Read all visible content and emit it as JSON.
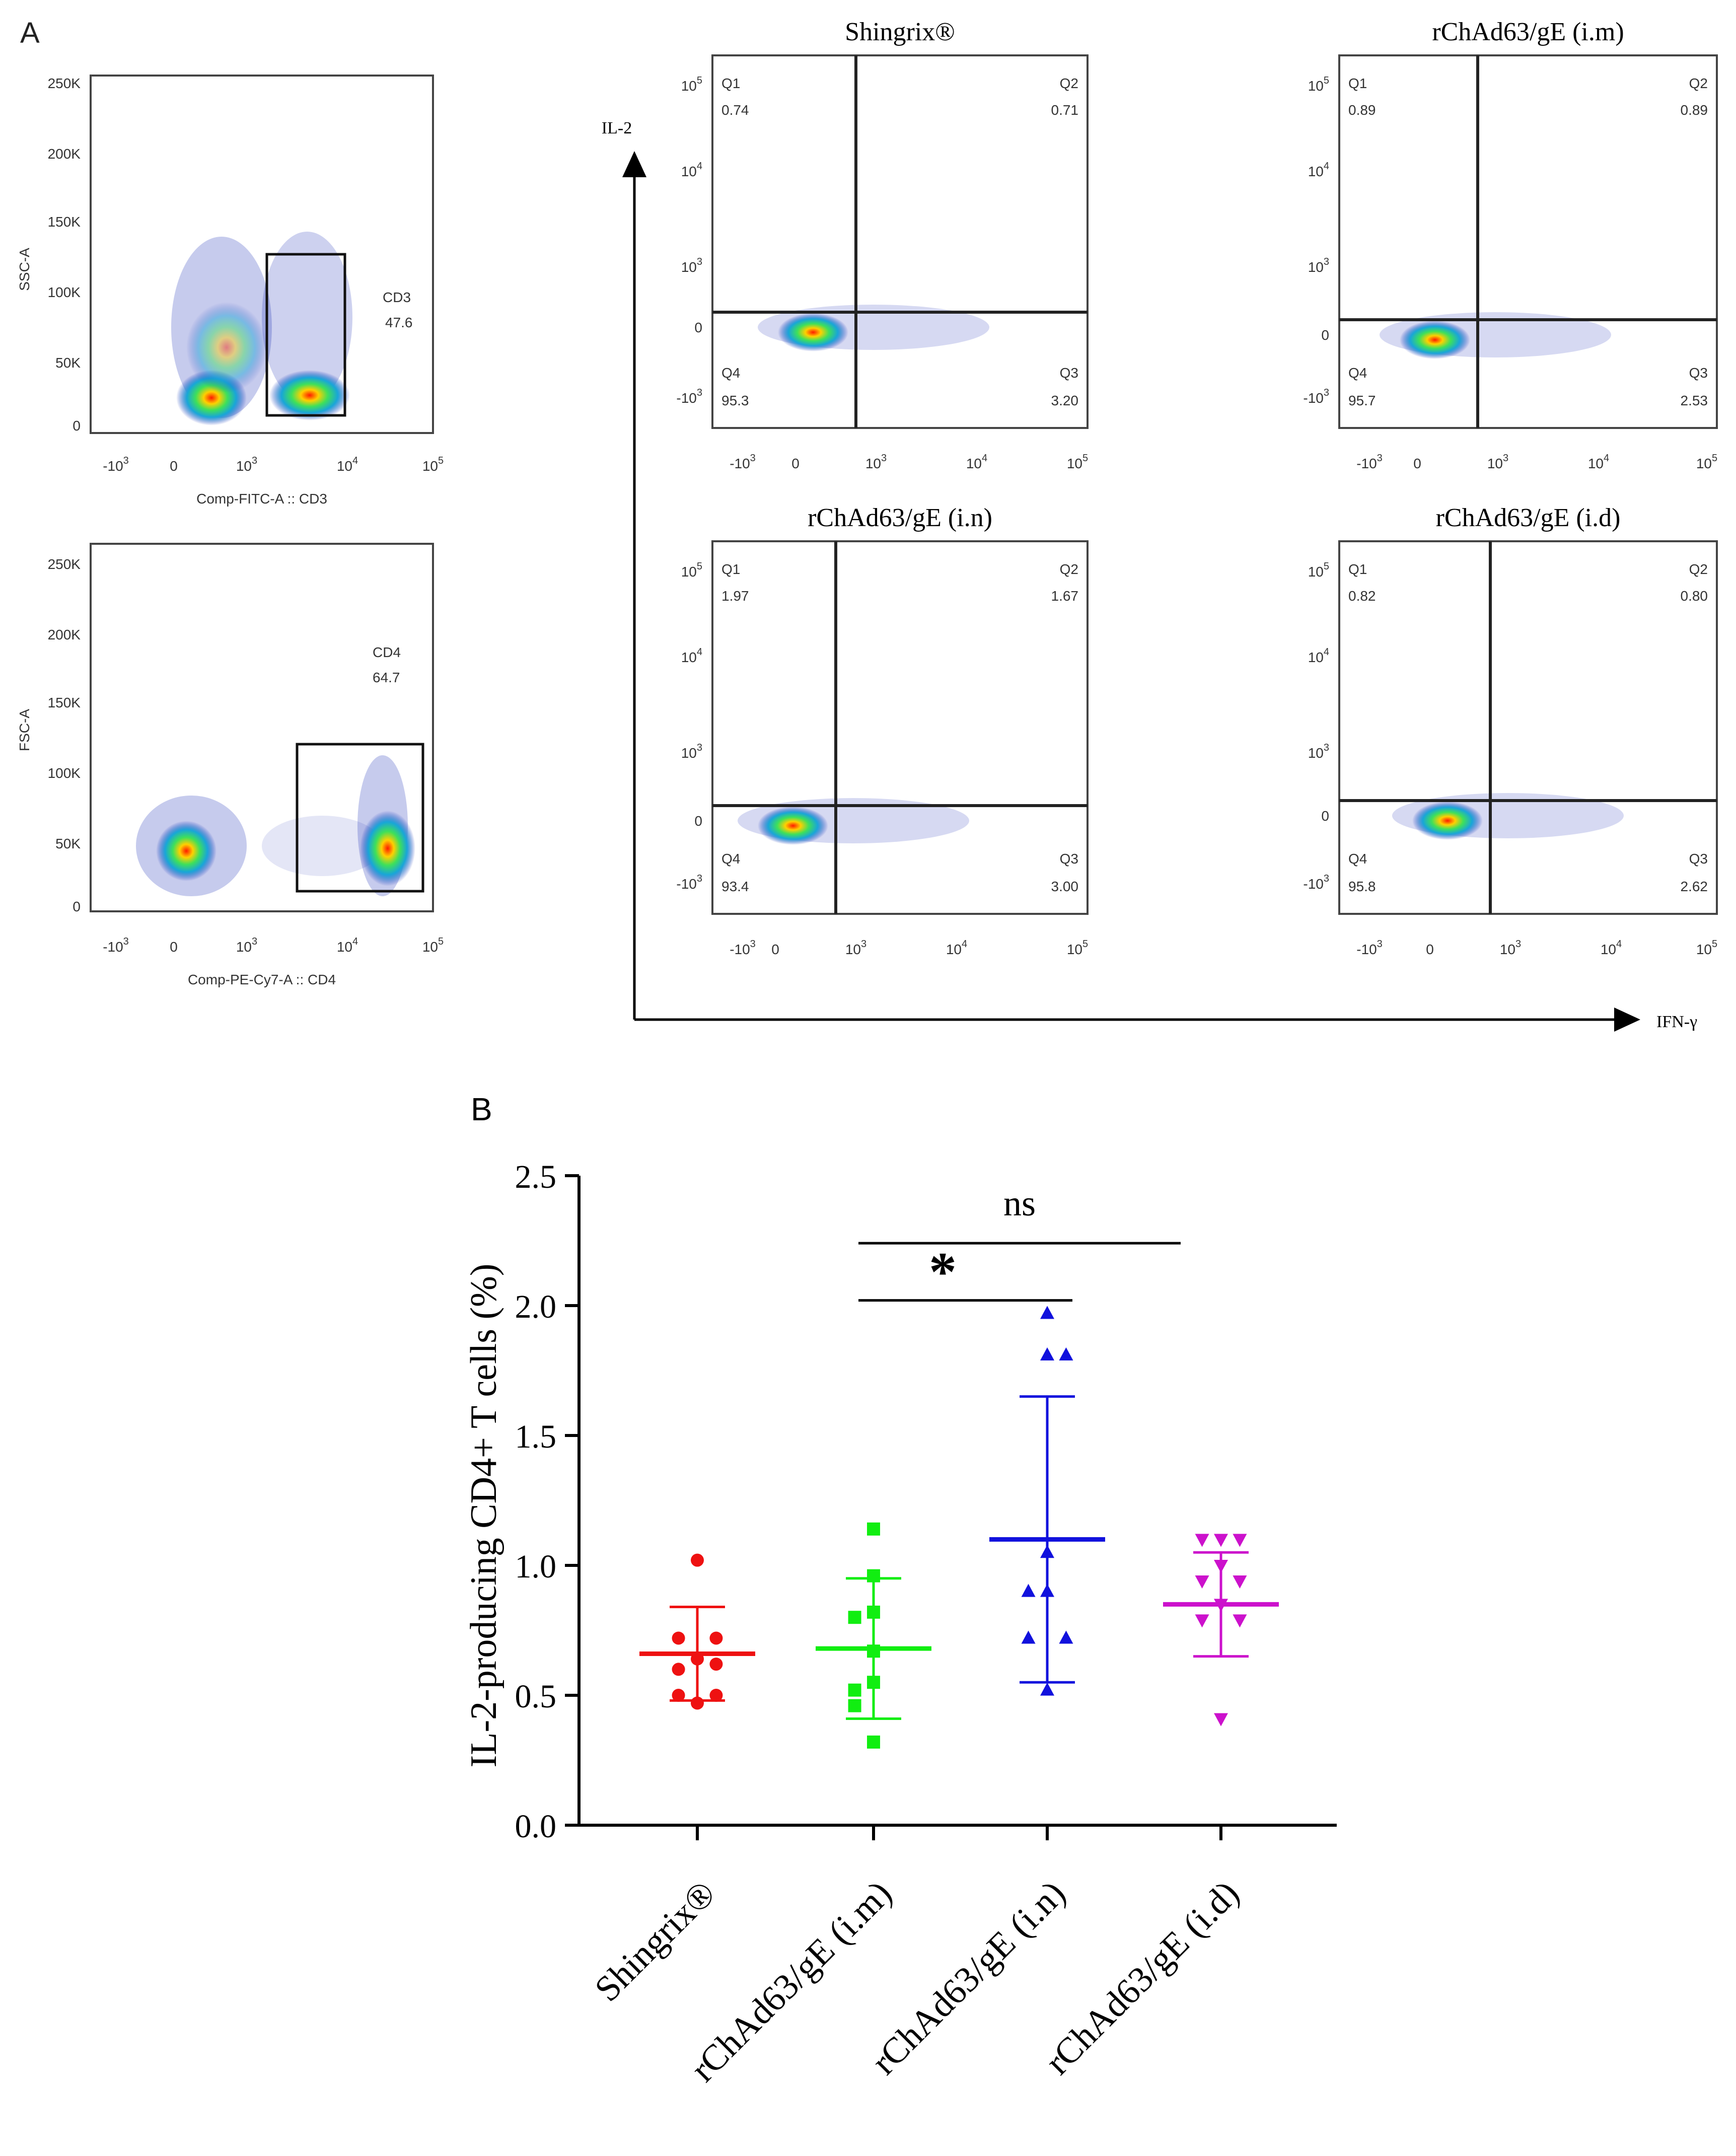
{
  "panel_a": {
    "label": "A",
    "gating": [
      {
        "id": "cd3",
        "ylabel": "SSC-A",
        "xlabel": "Comp-FITC-A :: CD3",
        "yticks": [
          "250K",
          "200K",
          "150K",
          "100K",
          "50K",
          "0"
        ],
        "gate_name": "CD3",
        "gate_value": "47.6"
      },
      {
        "id": "cd4",
        "ylabel": "FSC-A",
        "xlabel": "Comp-PE-Cy7-A :: CD4",
        "yticks": [
          "250K",
          "200K",
          "150K",
          "100K",
          "50K",
          "0"
        ],
        "gate_name": "CD4",
        "gate_value": "64.7"
      }
    ],
    "log_ticks": {
      "neg": "-10",
      "zero": "0",
      "p3": "10",
      "p4": "10",
      "p5": "10",
      "e_neg": "3",
      "e3": "3",
      "e4": "4",
      "e5": "5"
    },
    "y_axis_label": "IL-2",
    "x_axis_label": "IFN-γ",
    "quadrant_plots": [
      {
        "title": "Shingrix®",
        "q1": "0.74",
        "q2": "0.71",
        "q3": "3.20",
        "q4": "95.3"
      },
      {
        "title": "rChAd63/gE  (i.m)",
        "q1": "0.89",
        "q2": "0.89",
        "q3": "2.53",
        "q4": "95.7"
      },
      {
        "title": "rChAd63/gE  (i.n)",
        "q1": "1.97",
        "q2": "1.67",
        "q3": "3.00",
        "q4": "93.4"
      },
      {
        "title": "rChAd63/gE  (i.d)",
        "q1": "0.82",
        "q2": "0.80",
        "q3": "2.62",
        "q4": "95.8"
      }
    ],
    "quadrant_names": {
      "q1": "Q1",
      "q2": "Q2",
      "q3": "Q3",
      "q4": "Q4"
    }
  },
  "chart_data": {
    "panel_label": "B",
    "type": "scatter",
    "ylabel": "IL-2-producing CD4+ T cells (%)",
    "ylim": [
      0,
      2.5
    ],
    "yticks": [
      "0.0",
      "0.5",
      "1.0",
      "1.5",
      "2.0",
      "2.5"
    ],
    "categories": [
      "Shingrix®",
      "rChAd63/gE (i.m)",
      "rChAd63/gE (i.n)",
      "rChAd63/gE (i.d)"
    ],
    "series": [
      {
        "name": "Shingrix®",
        "color": "#ee1111",
        "marker": "circle",
        "mean": 0.66,
        "sd_low": 0.48,
        "sd_high": 0.84,
        "points": [
          [
            0,
            1.02
          ],
          [
            -0.6,
            0.72
          ],
          [
            0.6,
            0.72
          ],
          [
            -0.6,
            0.6
          ],
          [
            0,
            0.64
          ],
          [
            0.6,
            0.62
          ],
          [
            -0.6,
            0.5
          ],
          [
            0.6,
            0.5
          ],
          [
            0,
            0.47
          ]
        ]
      },
      {
        "name": "rChAd63/gE (i.m)",
        "color": "#11ee11",
        "marker": "square",
        "mean": 0.68,
        "sd_low": 0.41,
        "sd_high": 0.95,
        "points": [
          [
            0,
            1.14
          ],
          [
            0,
            0.96
          ],
          [
            -0.6,
            0.8
          ],
          [
            0,
            0.82
          ],
          [
            0,
            0.67
          ],
          [
            -0.6,
            0.52
          ],
          [
            0,
            0.55
          ],
          [
            -0.6,
            0.46
          ],
          [
            0,
            0.32
          ]
        ]
      },
      {
        "name": "rChAd63/gE (i.n)",
        "color": "#1111dd",
        "marker": "triangle-up",
        "mean": 1.1,
        "sd_low": 0.55,
        "sd_high": 1.65,
        "points": [
          [
            0,
            1.97
          ],
          [
            0,
            1.81
          ],
          [
            0.6,
            1.81
          ],
          [
            0,
            1.05
          ],
          [
            -0.6,
            0.9
          ],
          [
            0,
            0.9
          ],
          [
            -0.6,
            0.72
          ],
          [
            0.6,
            0.72
          ],
          [
            0,
            0.52
          ]
        ]
      },
      {
        "name": "rChAd63/gE (i.d)",
        "color": "#cc11cc",
        "marker": "triangle-down",
        "mean": 0.85,
        "sd_low": 0.65,
        "sd_high": 1.05,
        "points": [
          [
            0,
            1.1
          ],
          [
            -0.6,
            1.1
          ],
          [
            0.6,
            1.1
          ],
          [
            0,
            1.0
          ],
          [
            -0.6,
            0.94
          ],
          [
            0.6,
            0.94
          ],
          [
            0,
            0.85
          ],
          [
            -0.6,
            0.79
          ],
          [
            0.6,
            0.79
          ],
          [
            0,
            0.41
          ]
        ]
      }
    ],
    "annotations": [
      {
        "text": "ns",
        "from": 1,
        "to": 3,
        "y": 2.24
      },
      {
        "text": "*",
        "from": 1,
        "to": 2,
        "y": 2.02
      }
    ]
  }
}
